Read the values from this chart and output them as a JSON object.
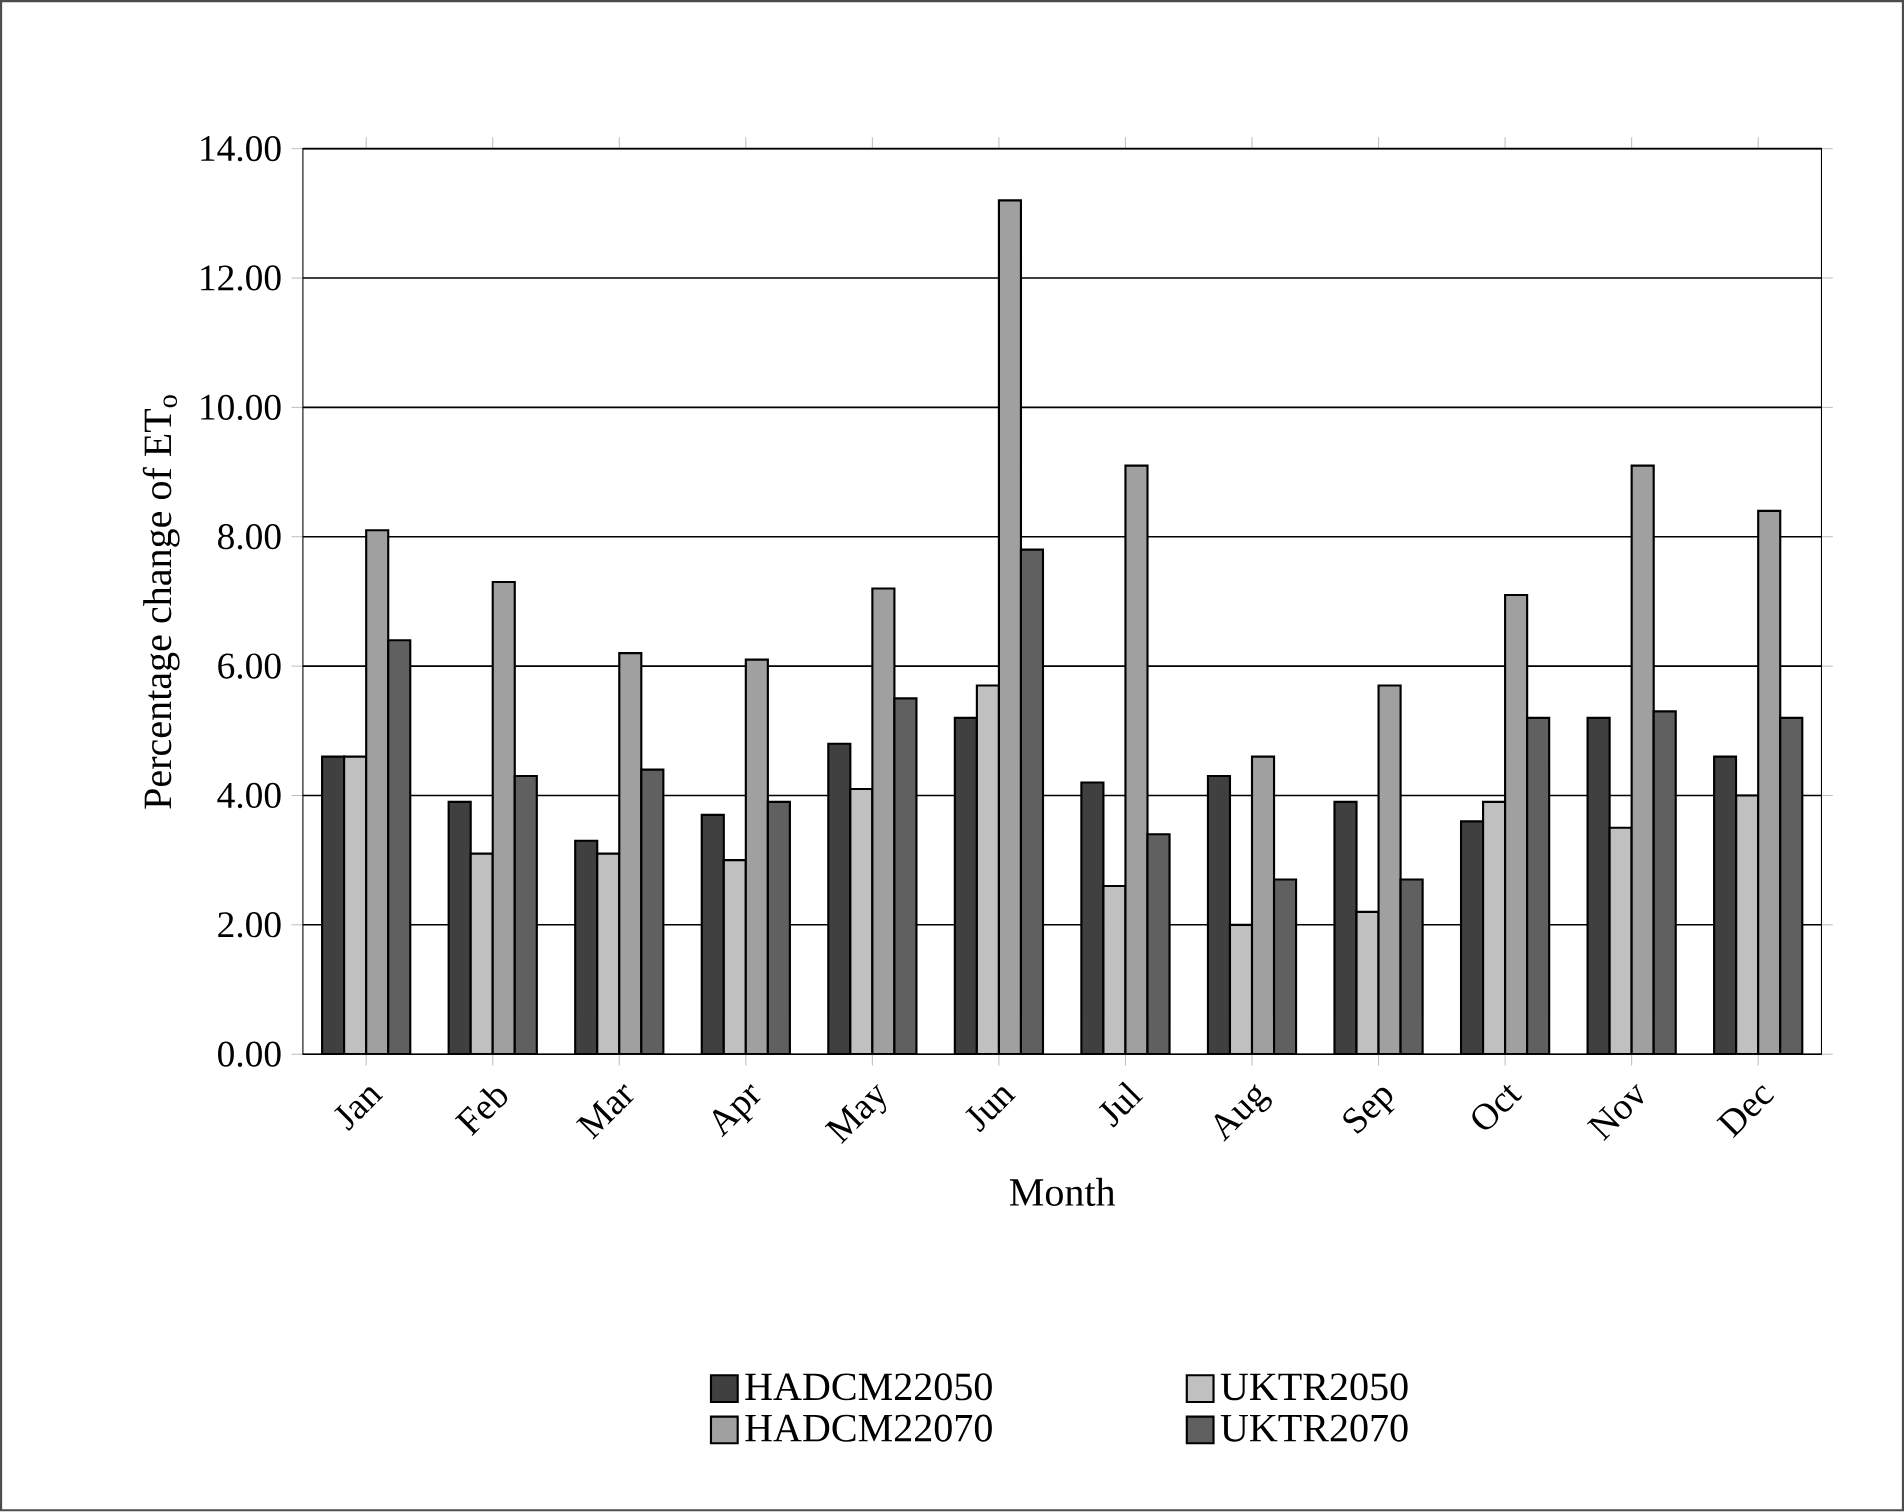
{
  "chart_data": {
    "type": "bar",
    "xlabel": "Month",
    "ylabel": "Percentage change of ET$_{o}$",
    "categories": [
      "Jan",
      "Feb",
      "Mar",
      "Apr",
      "May",
      "Jun",
      "Jul",
      "Aug",
      "Sep",
      "Oct",
      "Nov",
      "Dec"
    ],
    "series": [
      {
        "name": "HADCM22050",
        "color": "#404040",
        "values": [
          4.6,
          3.9,
          3.3,
          3.7,
          4.8,
          5.2,
          4.2,
          4.3,
          3.9,
          3.6,
          5.2,
          4.6
        ]
      },
      {
        "name": "UKTR2050",
        "color": "#c0c0c0",
        "values": [
          4.6,
          3.1,
          3.1,
          3.0,
          4.1,
          5.7,
          2.6,
          2.0,
          2.2,
          3.9,
          3.5,
          4.0
        ]
      },
      {
        "name": "HADCM22070",
        "color": "#a0a0a0",
        "values": [
          8.1,
          7.3,
          6.2,
          6.1,
          7.2,
          13.2,
          9.1,
          4.6,
          5.7,
          7.1,
          9.1,
          8.4
        ]
      },
      {
        "name": "UKTR2070",
        "color": "#606060",
        "values": [
          6.4,
          4.3,
          4.4,
          3.9,
          5.5,
          7.8,
          3.4,
          2.7,
          2.7,
          5.2,
          5.3,
          5.2
        ]
      }
    ],
    "ylim": [
      0,
      14
    ],
    "yticks": [
      {
        "value": 0,
        "label": "0.00"
      },
      {
        "value": 2,
        "label": "2.00"
      },
      {
        "value": 4,
        "label": "4.00"
      },
      {
        "value": 6,
        "label": "6.00"
      },
      {
        "value": 8,
        "label": "8.00"
      },
      {
        "value": 10,
        "label": "10.00"
      },
      {
        "value": 12,
        "label": "12.00"
      },
      {
        "value": 14,
        "label": "14.00"
      }
    ],
    "grid": "y",
    "legend": "bottom"
  }
}
